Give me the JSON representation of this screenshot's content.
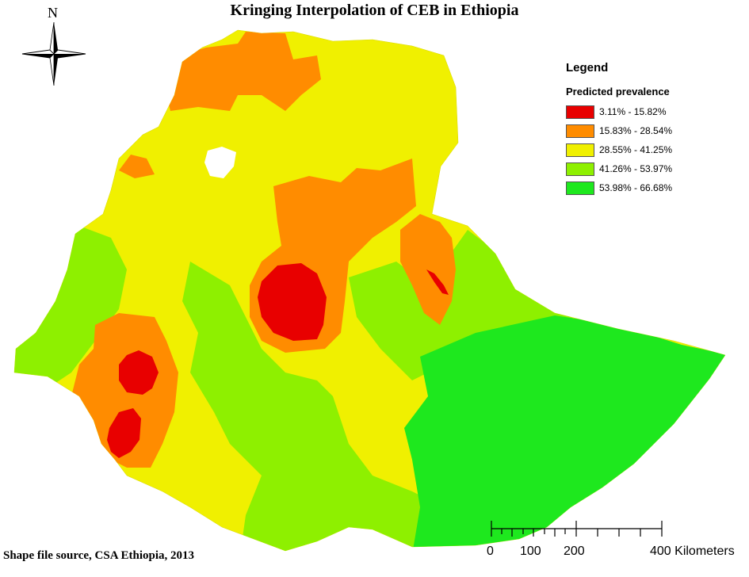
{
  "title": "Kringing Interpolation of CEB in Ethiopia",
  "north_arrow": {
    "letter": "N",
    "icon": "compass-rose-icon"
  },
  "legend": {
    "title": "Legend",
    "subtitle": "Predicted prevalence",
    "classes": [
      {
        "label": "3.11% - 15.82%",
        "color": "#e80000"
      },
      {
        "label": "15.83% - 28.54%",
        "color": "#ff8c00"
      },
      {
        "label": "28.55% - 41.25%",
        "color": "#f0f000"
      },
      {
        "label": "41.26% - 53.97%",
        "color": "#8ef000"
      },
      {
        "label": "53.98% - 66.68%",
        "color": "#1ee81e"
      }
    ]
  },
  "source_note": "Shape file source, CSA Ethiopia, 2013",
  "scale_bar": {
    "tick_labels": [
      "0",
      "100",
      "200",
      "400 Kilometers"
    ]
  }
}
